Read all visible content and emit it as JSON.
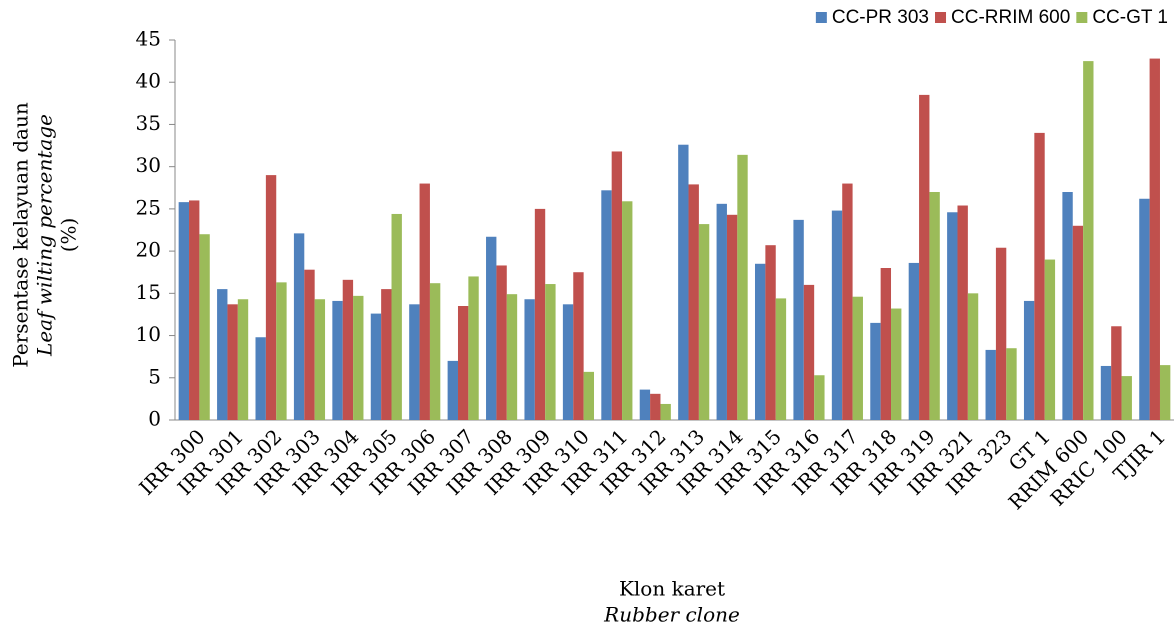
{
  "chart_data": {
    "type": "bar",
    "y_axis_label": [
      "Persentase kelayuan daun",
      "Leaf wilting percentage",
      "(%)"
    ],
    "x_axis_label": [
      "Klon karet",
      "Rubber clone"
    ],
    "categories": [
      "IRR 300",
      "IRR 301",
      "IRR 302",
      "IRR 303",
      "IRR 304",
      "IRR 305",
      "IRR 306",
      "IRR 307",
      "IRR 308",
      "IRR 309",
      "IRR 310",
      "IRR 311",
      "IRR 312",
      "IRR 313",
      "IRR 314",
      "IRR 315",
      "IRR 316",
      "IRR 317",
      "IRR 318",
      "IRR 319",
      "IRR 321",
      "IRR 323",
      "GT 1",
      "RRIM 600",
      "RRIC 100",
      "TJIR 1"
    ],
    "series": [
      {
        "name": "CC-PR 303",
        "color": "#4f81bd",
        "values": [
          25.8,
          15.5,
          9.8,
          22.1,
          14.1,
          12.6,
          13.7,
          7,
          21.7,
          14.3,
          13.7,
          27.2,
          3.6,
          32.6,
          25.6,
          18.5,
          23.7,
          24.8,
          11.5,
          18.6,
          24.6,
          8.3,
          14.1,
          27,
          6.4,
          26.2
        ]
      },
      {
        "name": "CC-RRIM 600",
        "color": "#c0504d",
        "values": [
          26,
          13.7,
          29,
          17.8,
          16.6,
          15.5,
          28,
          13.5,
          18.3,
          25,
          17.5,
          31.8,
          3.1,
          27.9,
          24.3,
          20.7,
          16,
          28,
          18,
          38.5,
          25.4,
          20.4,
          34,
          23,
          11.1,
          42.8
        ]
      },
      {
        "name": "CC-GT 1",
        "color": "#9bbb59",
        "values": [
          22,
          14.3,
          16.3,
          14.3,
          14.7,
          24.4,
          16.2,
          17,
          14.9,
          16.1,
          5.7,
          25.9,
          1.9,
          23.2,
          31.4,
          14.4,
          5.3,
          14.6,
          13.2,
          27,
          15,
          8.5,
          19,
          42.5,
          5.2,
          6.5
        ]
      }
    ],
    "ylim": [
      0,
      45
    ],
    "yticks": [
      0,
      5,
      10,
      15,
      20,
      25,
      30,
      35,
      40,
      45
    ],
    "grid": false,
    "legend": "top-right"
  }
}
